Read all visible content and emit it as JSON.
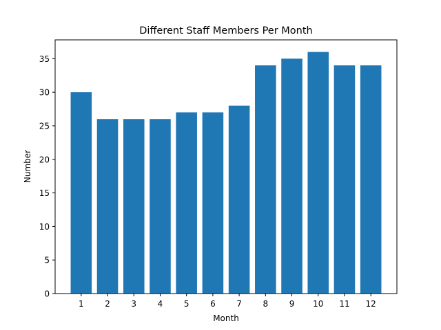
{
  "chart_data": {
    "type": "bar",
    "title": "Different Staff Members Per Month",
    "xlabel": "Month",
    "ylabel": "Number",
    "categories": [
      "1",
      "2",
      "3",
      "4",
      "5",
      "6",
      "7",
      "8",
      "9",
      "10",
      "11",
      "12"
    ],
    "values": [
      30,
      26,
      26,
      26,
      27,
      27,
      28,
      34,
      35,
      36,
      34,
      34
    ],
    "ylim": [
      0,
      37.8
    ],
    "yticks": [
      0,
      5,
      10,
      15,
      20,
      25,
      30,
      35
    ],
    "grid": false,
    "bar_color": "#1f77b4"
  }
}
